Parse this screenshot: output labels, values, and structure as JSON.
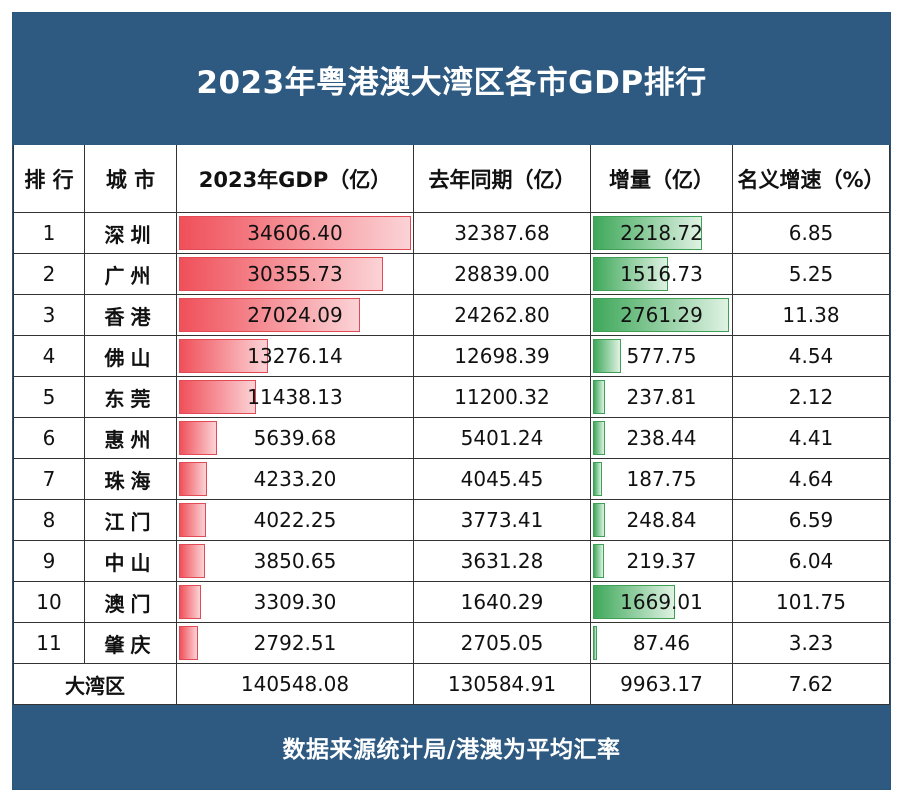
{
  "title": "2023年粤港澳大湾区各市GDP排行",
  "footer": "数据来源统计局/港澳为平均汇率",
  "colors": {
    "banner": "#2e5a82",
    "gdp_bar": "#f0505a",
    "increase_bar": "#3fa85a"
  },
  "chart_data": {
    "type": "table",
    "columns": [
      "排 行",
      "城 市",
      "2023年GDP（亿）",
      "去年同期（亿）",
      "增量（亿）",
      "名义增速（%）"
    ],
    "rows": [
      {
        "rank": "1",
        "city": "深圳",
        "gdp2023": 34606.4,
        "gdp2022": 32387.68,
        "increase": 2218.72,
        "growth": 6.85
      },
      {
        "rank": "2",
        "city": "广州",
        "gdp2023": 30355.73,
        "gdp2022": 28839.0,
        "increase": 1516.73,
        "growth": 5.25
      },
      {
        "rank": "3",
        "city": "香港",
        "gdp2023": 27024.09,
        "gdp2022": 24262.8,
        "increase": 2761.29,
        "growth": 11.38
      },
      {
        "rank": "4",
        "city": "佛山",
        "gdp2023": 13276.14,
        "gdp2022": 12698.39,
        "increase": 577.75,
        "growth": 4.54
      },
      {
        "rank": "5",
        "city": "东莞",
        "gdp2023": 11438.13,
        "gdp2022": 11200.32,
        "increase": 237.81,
        "growth": 2.12
      },
      {
        "rank": "6",
        "city": "惠州",
        "gdp2023": 5639.68,
        "gdp2022": 5401.24,
        "increase": 238.44,
        "growth": 4.41
      },
      {
        "rank": "7",
        "city": "珠海",
        "gdp2023": 4233.2,
        "gdp2022": 4045.45,
        "increase": 187.75,
        "growth": 4.64
      },
      {
        "rank": "8",
        "city": "江门",
        "gdp2023": 4022.25,
        "gdp2022": 3773.41,
        "increase": 248.84,
        "growth": 6.59
      },
      {
        "rank": "9",
        "city": "中山",
        "gdp2023": 3850.65,
        "gdp2022": 3631.28,
        "increase": 219.37,
        "growth": 6.04
      },
      {
        "rank": "10",
        "city": "澳门",
        "gdp2023": 3309.3,
        "gdp2022": 1640.29,
        "increase": 1669.01,
        "growth": 101.75
      },
      {
        "rank": "11",
        "city": "肇庆",
        "gdp2023": 2792.51,
        "gdp2022": 2705.05,
        "increase": 87.46,
        "growth": 3.23
      }
    ],
    "total": {
      "label": "大湾区",
      "gdp2023": 140548.08,
      "gdp2022": 130584.91,
      "increase": 9963.17,
      "growth": 7.62
    }
  }
}
